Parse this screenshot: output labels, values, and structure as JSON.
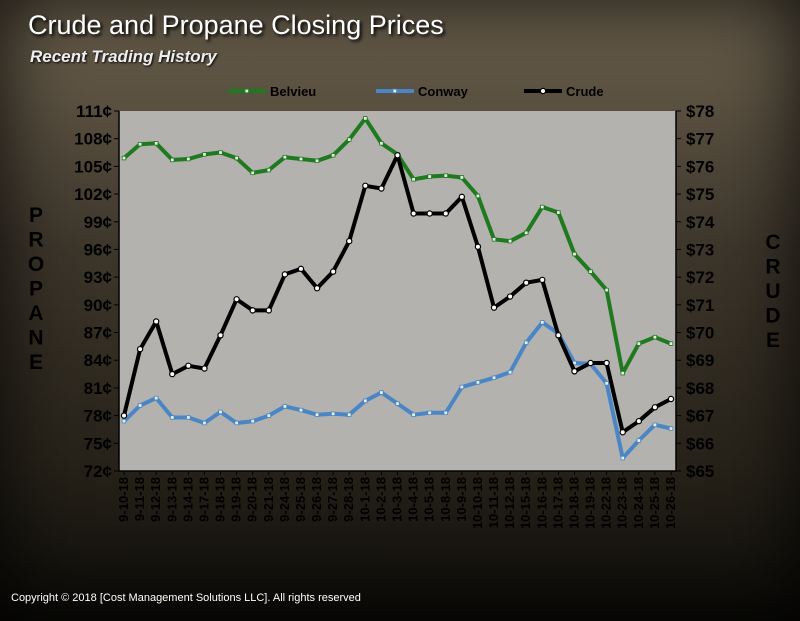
{
  "title": "Crude and Propane Closing Prices",
  "subtitle": "Recent Trading History",
  "copyright": "Copyright  © 2018  [Cost Management  Solutions LLC].   All rights  reserved",
  "colors": {
    "plot_background": "#b4b2ae",
    "belvieu": "#1f7a1f",
    "conway": "#4a86c5",
    "crude": "#000000"
  },
  "chart_data": {
    "type": "line",
    "title": "Crude and Propane Closing Prices",
    "subtitle": "Recent Trading History",
    "legend_position": "top",
    "grid": false,
    "y_left": {
      "label": "PROPANE",
      "range": [
        72,
        111
      ],
      "ticks": [
        "72¢",
        "75¢",
        "78¢",
        "81¢",
        "84¢",
        "87¢",
        "90¢",
        "93¢",
        "96¢",
        "99¢",
        "102¢",
        "105¢",
        "108¢",
        "111¢"
      ]
    },
    "y_right": {
      "label": "CRUDE",
      "range": [
        65,
        78
      ],
      "ticks": [
        "$65",
        "$66",
        "$67",
        "$68",
        "$69",
        "$70",
        "$71",
        "$72",
        "$73",
        "$74",
        "$75",
        "$76",
        "$77",
        "$78"
      ]
    },
    "categories": [
      "9-10-18",
      "9-11-18",
      "9-12-18",
      "9-13-18",
      "9-14-18",
      "9-17-18",
      "9-18-18",
      "9-19-18",
      "9-20-18",
      "9-21-18",
      "9-24-18",
      "9-25-18",
      "9-26-18",
      "9-27-18",
      "9-28-18",
      "10-1-18",
      "10-2-18",
      "10-3-18",
      "10-4-18",
      "10-5-18",
      "10-8-18",
      "10-9-18",
      "10-10-18",
      "10-11-18",
      "10-12-18",
      "10-15-18",
      "10-16-18",
      "10-17-18",
      "10-18-18",
      "10-19-18",
      "10-22-18",
      "10-23-18",
      "10-24-18",
      "10-25-18",
      "10-26-18"
    ],
    "series": [
      {
        "name": "Belvieu",
        "axis": "left",
        "color": "#1f7a1f",
        "marker": "square",
        "values": [
          105.9,
          107.4,
          107.5,
          105.7,
          105.8,
          106.3,
          106.5,
          105.9,
          104.3,
          104.6,
          106.0,
          105.8,
          105.6,
          106.2,
          107.9,
          110.2,
          107.5,
          106.3,
          103.6,
          103.9,
          104.0,
          103.8,
          101.8,
          97.1,
          96.9,
          97.8,
          100.6,
          100.0,
          95.5,
          93.6,
          91.6,
          82.6,
          85.8,
          86.5,
          85.8
        ]
      },
      {
        "name": "Conway",
        "axis": "left",
        "color": "#4a86c5",
        "marker": "square",
        "values": [
          77.4,
          79.1,
          79.9,
          77.8,
          77.8,
          77.2,
          78.4,
          77.2,
          77.4,
          78.0,
          79.0,
          78.6,
          78.1,
          78.2,
          78.1,
          79.6,
          80.5,
          79.3,
          78.1,
          78.3,
          78.3,
          81.1,
          81.6,
          82.1,
          82.7,
          85.9,
          88.1,
          86.9,
          83.7,
          83.6,
          81.5,
          73.4,
          75.3,
          77.0,
          76.6
        ]
      },
      {
        "name": "Crude",
        "axis": "right",
        "color": "#000000",
        "marker": "circle",
        "values": [
          67.0,
          69.4,
          70.4,
          68.5,
          68.8,
          68.7,
          69.9,
          71.2,
          70.8,
          70.8,
          72.1,
          72.3,
          71.6,
          72.2,
          73.3,
          75.3,
          75.2,
          76.4,
          74.3,
          74.3,
          74.3,
          74.9,
          73.1,
          70.9,
          71.3,
          71.8,
          71.9,
          69.9,
          68.6,
          68.9,
          68.9,
          66.4,
          66.8,
          67.3,
          67.6
        ]
      }
    ]
  }
}
